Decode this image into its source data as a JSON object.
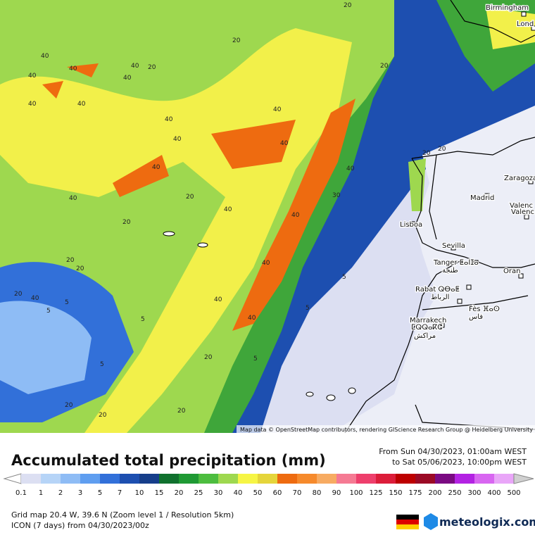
{
  "map": {
    "attribution": "Map data © OpenStreetMap contributors, rendering GIScience Research Group @ Heidelberg University",
    "cities": [
      "Birmingham",
      "Lond",
      "Zaragoza",
      "Madrid",
      "Valenc",
      "Valenc",
      "Lisboa",
      "Sevilla",
      "Tanger ⵟⴰⵏⵊⴰ",
      "طنجة",
      "Oran",
      "Rabat ⵕⴱⴰⵟ",
      "الرباط",
      "Fès ⴼⴰⵙ",
      "فاس",
      "Marrakech",
      "ⵎⵕⵕⴰⴽⵛ",
      "مراكش"
    ],
    "contour_labels": [
      "20",
      "40",
      "40",
      "40",
      "20",
      "40",
      "40",
      "40",
      "40",
      "40",
      "40",
      "40",
      "40",
      "40",
      "20",
      "40",
      "40",
      "30",
      "40",
      "20",
      "20",
      "20",
      "20",
      "40",
      "5",
      "5",
      "5",
      "40",
      "40",
      "5",
      "5",
      "5",
      "40",
      "20",
      "20",
      "20",
      "20",
      "40",
      "20",
      "5",
      "20",
      "20",
      "20"
    ]
  },
  "footer": {
    "title": "Accumulated total precipitation (mm)",
    "from": "From Sun 04/30/2023, 01:00am WEST",
    "to": "to Sat 05/06/2023, 10:00pm WEST",
    "legend": {
      "labels": [
        "0.1",
        "1",
        "2",
        "3",
        "5",
        "7",
        "10",
        "15",
        "20",
        "25",
        "30",
        "40",
        "50",
        "60",
        "70",
        "80",
        "90",
        "100",
        "125",
        "150",
        "175",
        "200",
        "250",
        "300",
        "400",
        "500"
      ],
      "colors": [
        "#dcdff2",
        "#b6d4f7",
        "#8ebcf5",
        "#5f9ef0",
        "#3270d9",
        "#1d4fb0",
        "#163e8a",
        "#10712e",
        "#1f9a34",
        "#4dbd3f",
        "#9ed84f",
        "#f6f545",
        "#e5d53b",
        "#ee6b10",
        "#f68a2c",
        "#f7ab62",
        "#f57a93",
        "#ee3f6c",
        "#dc1d3a",
        "#bd0000",
        "#9b0a25",
        "#7a0a82",
        "#b322e3",
        "#d866f1",
        "#e9a6f8",
        "#f6e9f8"
      ]
    },
    "grid_info": "Grid map 20.4 W, 39.6 N (Zoom level 1 / Resolution 5km)",
    "model_info": "ICON (7 days)  from  04/30/2023/00z",
    "logo": "meteologix.com"
  }
}
